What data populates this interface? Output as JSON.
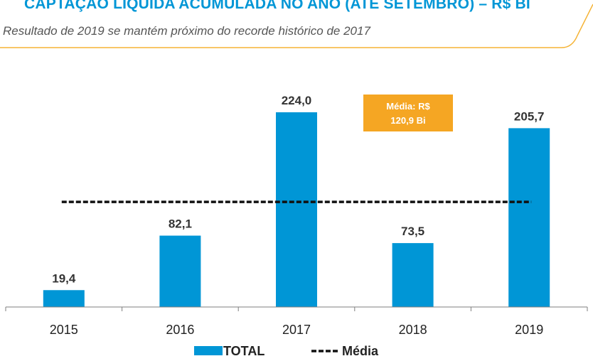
{
  "header": {
    "title": "CAPTAÇÃO LÍQUIDA ACUMULADA NO ANO (ATÉ SETEMBRO) – R$ BI",
    "subtitle": "Resultado de 2019 se mantém próximo do recorde histórico de 2017"
  },
  "chart_data": {
    "type": "bar",
    "categories": [
      "2015",
      "2016",
      "2017",
      "2018",
      "2019"
    ],
    "series": [
      {
        "name": "TOTAL",
        "values": [
          19.4,
          82.1,
          224.0,
          73.5,
          205.7
        ],
        "labels": [
          "19,4",
          "82,1",
          "224,0",
          "73,5",
          "205,7"
        ],
        "color": "#0096D6"
      }
    ],
    "average": {
      "name": "Média",
      "value": 120.9,
      "style": "dashed",
      "color": "#111111"
    },
    "callout": {
      "lines": [
        "Média: R$",
        "120,9 Bi"
      ],
      "color": "#F5A623"
    },
    "legend": {
      "placement": "bottom-center",
      "entries": [
        "TOTAL",
        "Média"
      ]
    },
    "ylim": [
      0,
      224
    ],
    "grid": false,
    "xlabel": "",
    "ylabel": ""
  },
  "colors": {
    "accent": "#0096D6",
    "callout": "#F5A623",
    "decoration": "#F5B335"
  }
}
